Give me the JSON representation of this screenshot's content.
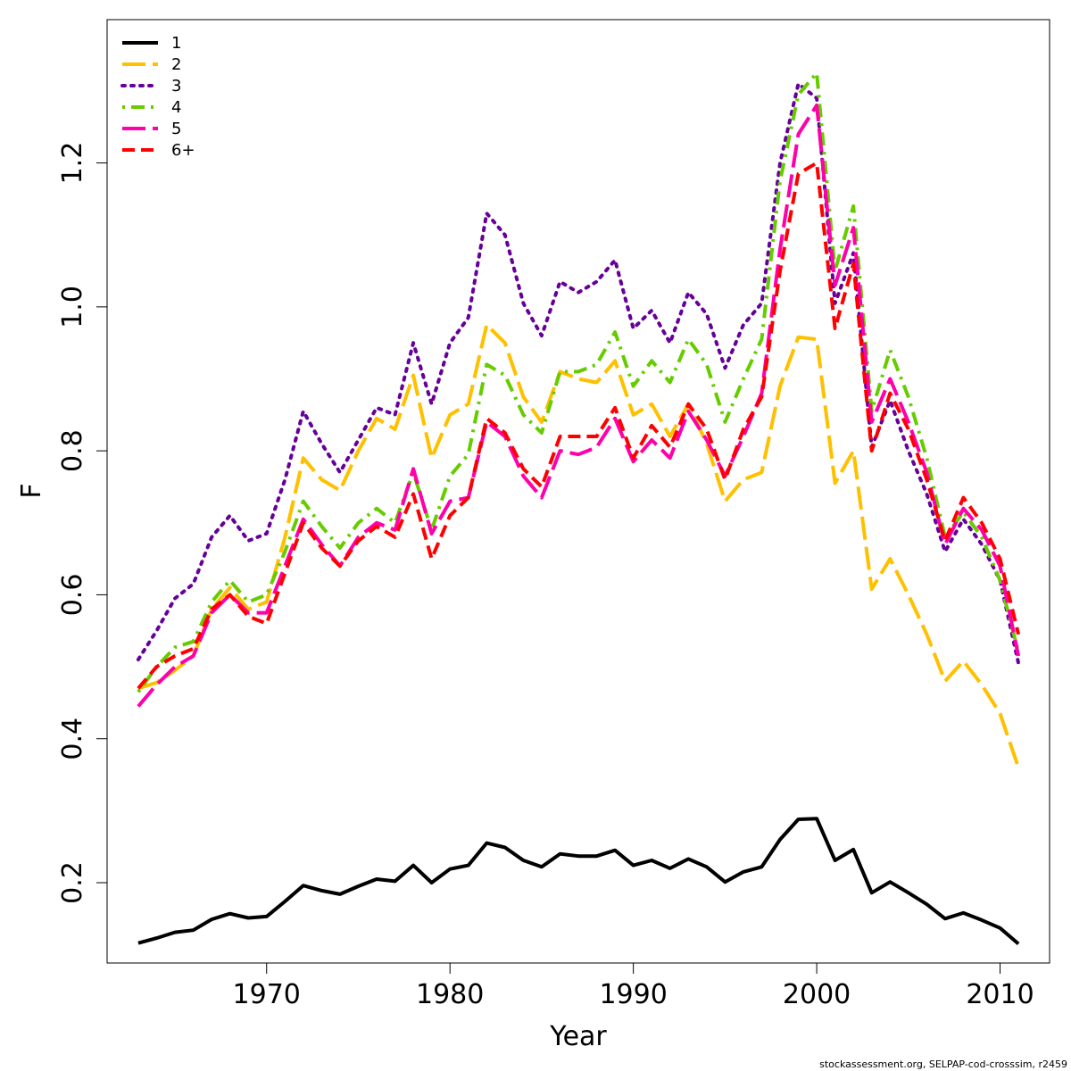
{
  "chart_data": {
    "type": "line",
    "title": "",
    "xlabel": "Year",
    "ylabel": "F",
    "xlim": [
      1961.3,
      2012.7
    ],
    "ylim": [
      0.0884,
      1.3991
    ],
    "xticks": [
      1970,
      1980,
      1990,
      2000,
      2010
    ],
    "xtick_labels": [
      "1970",
      "1980",
      "1990",
      "2000",
      "2010"
    ],
    "yticks": [
      0.2,
      0.4,
      0.6,
      0.8,
      1.0,
      1.2
    ],
    "ytick_labels": [
      "0.2",
      "0.4",
      "0.6",
      "0.8",
      "1.0",
      "1.2"
    ],
    "legend_position": "top-left",
    "grid": false,
    "x": [
      1963,
      1964,
      1965,
      1966,
      1967,
      1968,
      1969,
      1970,
      1971,
      1972,
      1973,
      1974,
      1975,
      1976,
      1977,
      1978,
      1979,
      1980,
      1981,
      1982,
      1983,
      1984,
      1985,
      1986,
      1987,
      1988,
      1989,
      1990,
      1991,
      1992,
      1993,
      1994,
      1995,
      1996,
      1997,
      1998,
      1999,
      2000,
      2001,
      2002,
      2003,
      2004,
      2005,
      2006,
      2007,
      2008,
      2009,
      2010,
      2011
    ],
    "series": [
      {
        "name": "1",
        "color": "#000000",
        "dash": "solid",
        "values": [
          0.116,
          0.123,
          0.131,
          0.134,
          0.149,
          0.157,
          0.151,
          0.153,
          0.174,
          0.196,
          0.189,
          0.184,
          0.195,
          0.205,
          0.202,
          0.224,
          0.2,
          0.219,
          0.224,
          0.255,
          0.249,
          0.231,
          0.222,
          0.24,
          0.237,
          0.237,
          0.245,
          0.224,
          0.231,
          0.22,
          0.233,
          0.222,
          0.201,
          0.215,
          0.222,
          0.26,
          0.288,
          0.289,
          0.231,
          0.246,
          0.186,
          0.201,
          0.186,
          0.17,
          0.15,
          0.158,
          0.148,
          0.137,
          0.115
        ]
      },
      {
        "name": "2",
        "color": "#FFC000",
        "dash": "longdash",
        "values": [
          0.47,
          0.478,
          0.495,
          0.515,
          0.58,
          0.61,
          0.58,
          0.59,
          0.68,
          0.79,
          0.76,
          0.745,
          0.8,
          0.845,
          0.83,
          0.905,
          0.79,
          0.85,
          0.865,
          0.975,
          0.95,
          0.875,
          0.84,
          0.91,
          0.9,
          0.895,
          0.925,
          0.85,
          0.865,
          0.82,
          0.865,
          0.81,
          0.73,
          0.76,
          0.77,
          0.89,
          0.958,
          0.955,
          0.755,
          0.8,
          0.608,
          0.65,
          0.6,
          0.545,
          0.48,
          0.508,
          0.475,
          0.435,
          0.36
        ]
      },
      {
        "name": "3",
        "color": "#660099",
        "dash": "dotted",
        "values": [
          0.51,
          0.55,
          0.595,
          0.615,
          0.68,
          0.71,
          0.675,
          0.685,
          0.76,
          0.855,
          0.81,
          0.77,
          0.815,
          0.86,
          0.85,
          0.95,
          0.865,
          0.95,
          0.985,
          1.13,
          1.1,
          1.005,
          0.96,
          1.035,
          1.02,
          1.035,
          1.065,
          0.97,
          0.995,
          0.95,
          1.02,
          0.99,
          0.915,
          0.975,
          1.005,
          1.2,
          1.31,
          1.29,
          1.005,
          1.075,
          0.805,
          0.87,
          0.8,
          0.74,
          0.66,
          0.705,
          0.67,
          0.62,
          0.505
        ]
      },
      {
        "name": "4",
        "color": "#66CC00",
        "dash": "dotdash",
        "values": [
          0.465,
          0.5,
          0.527,
          0.535,
          0.59,
          0.62,
          0.59,
          0.6,
          0.66,
          0.73,
          0.695,
          0.665,
          0.7,
          0.72,
          0.7,
          0.77,
          0.69,
          0.765,
          0.795,
          0.92,
          0.905,
          0.85,
          0.825,
          0.91,
          0.91,
          0.92,
          0.965,
          0.89,
          0.925,
          0.895,
          0.955,
          0.92,
          0.84,
          0.9,
          0.955,
          1.175,
          1.295,
          1.325,
          1.05,
          1.14,
          0.855,
          0.94,
          0.875,
          0.79,
          0.68,
          0.715,
          0.68,
          0.62,
          0.52
        ]
      },
      {
        "name": "5",
        "color": "#FF00AA",
        "dash": "longdash",
        "values": [
          0.445,
          0.475,
          0.5,
          0.515,
          0.575,
          0.6,
          0.575,
          0.575,
          0.64,
          0.705,
          0.67,
          0.64,
          0.68,
          0.7,
          0.69,
          0.775,
          0.685,
          0.73,
          0.735,
          0.84,
          0.82,
          0.765,
          0.735,
          0.8,
          0.795,
          0.805,
          0.845,
          0.785,
          0.815,
          0.79,
          0.855,
          0.815,
          0.765,
          0.82,
          0.88,
          1.08,
          1.24,
          1.28,
          1.03,
          1.11,
          0.84,
          0.9,
          0.84,
          0.77,
          0.67,
          0.72,
          0.69,
          0.64,
          0.515
        ]
      },
      {
        "name": "6+",
        "color": "#FF0000",
        "dash": "dashed",
        "values": [
          0.47,
          0.5,
          0.515,
          0.525,
          0.58,
          0.6,
          0.57,
          0.56,
          0.63,
          0.7,
          0.665,
          0.64,
          0.675,
          0.695,
          0.68,
          0.74,
          0.65,
          0.71,
          0.735,
          0.845,
          0.825,
          0.775,
          0.75,
          0.82,
          0.82,
          0.82,
          0.86,
          0.79,
          0.835,
          0.805,
          0.865,
          0.83,
          0.76,
          0.83,
          0.875,
          1.05,
          1.185,
          1.2,
          0.97,
          1.06,
          0.8,
          0.88,
          0.83,
          0.76,
          0.675,
          0.735,
          0.7,
          0.65,
          0.545
        ]
      }
    ]
  },
  "credit": "stockassessment.org, SELPAP-cod-crosssim, r2459"
}
